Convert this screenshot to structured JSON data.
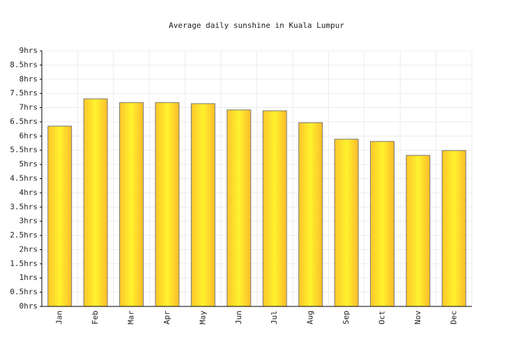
{
  "chart_data": {
    "type": "bar",
    "title": "Average daily sunshine in Kuala Lumpur",
    "categories": [
      "Jan",
      "Feb",
      "Mar",
      "Apr",
      "May",
      "Jun",
      "Jul",
      "Aug",
      "Sep",
      "Oct",
      "Nov",
      "Dec"
    ],
    "values": [
      6.35,
      7.31,
      7.18,
      7.18,
      7.14,
      6.92,
      6.89,
      6.47,
      5.89,
      5.81,
      5.32,
      5.49
    ],
    "color": "#fff22e",
    "ylim": [
      0,
      9
    ],
    "yticks": [
      {
        "value": 0,
        "label": "0hrs"
      },
      {
        "value": 0.5,
        "label": "0.5hrs"
      },
      {
        "value": 1,
        "label": "1hrs"
      },
      {
        "value": 1.5,
        "label": "1.5hrs"
      },
      {
        "value": 2,
        "label": "2hrs"
      },
      {
        "value": 2.5,
        "label": "2.5hrs"
      },
      {
        "value": 3,
        "label": "3hrs"
      },
      {
        "value": 3.5,
        "label": "3.5hrs"
      },
      {
        "value": 4,
        "label": "4hrs"
      },
      {
        "value": 4.5,
        "label": "4.5hrs"
      },
      {
        "value": 5,
        "label": "5hrs"
      },
      {
        "value": 5.5,
        "label": "5.5hrs"
      },
      {
        "value": 6,
        "label": "6hrs"
      },
      {
        "value": 6.5,
        "label": "6.5hrs"
      },
      {
        "value": 7,
        "label": "7hrs"
      },
      {
        "value": 7.5,
        "label": "7.5hrs"
      },
      {
        "value": 8,
        "label": "8hrs"
      },
      {
        "value": 8.5,
        "label": "8.5hrs"
      },
      {
        "value": 9,
        "label": "9hrs"
      }
    ],
    "grid": true
  }
}
